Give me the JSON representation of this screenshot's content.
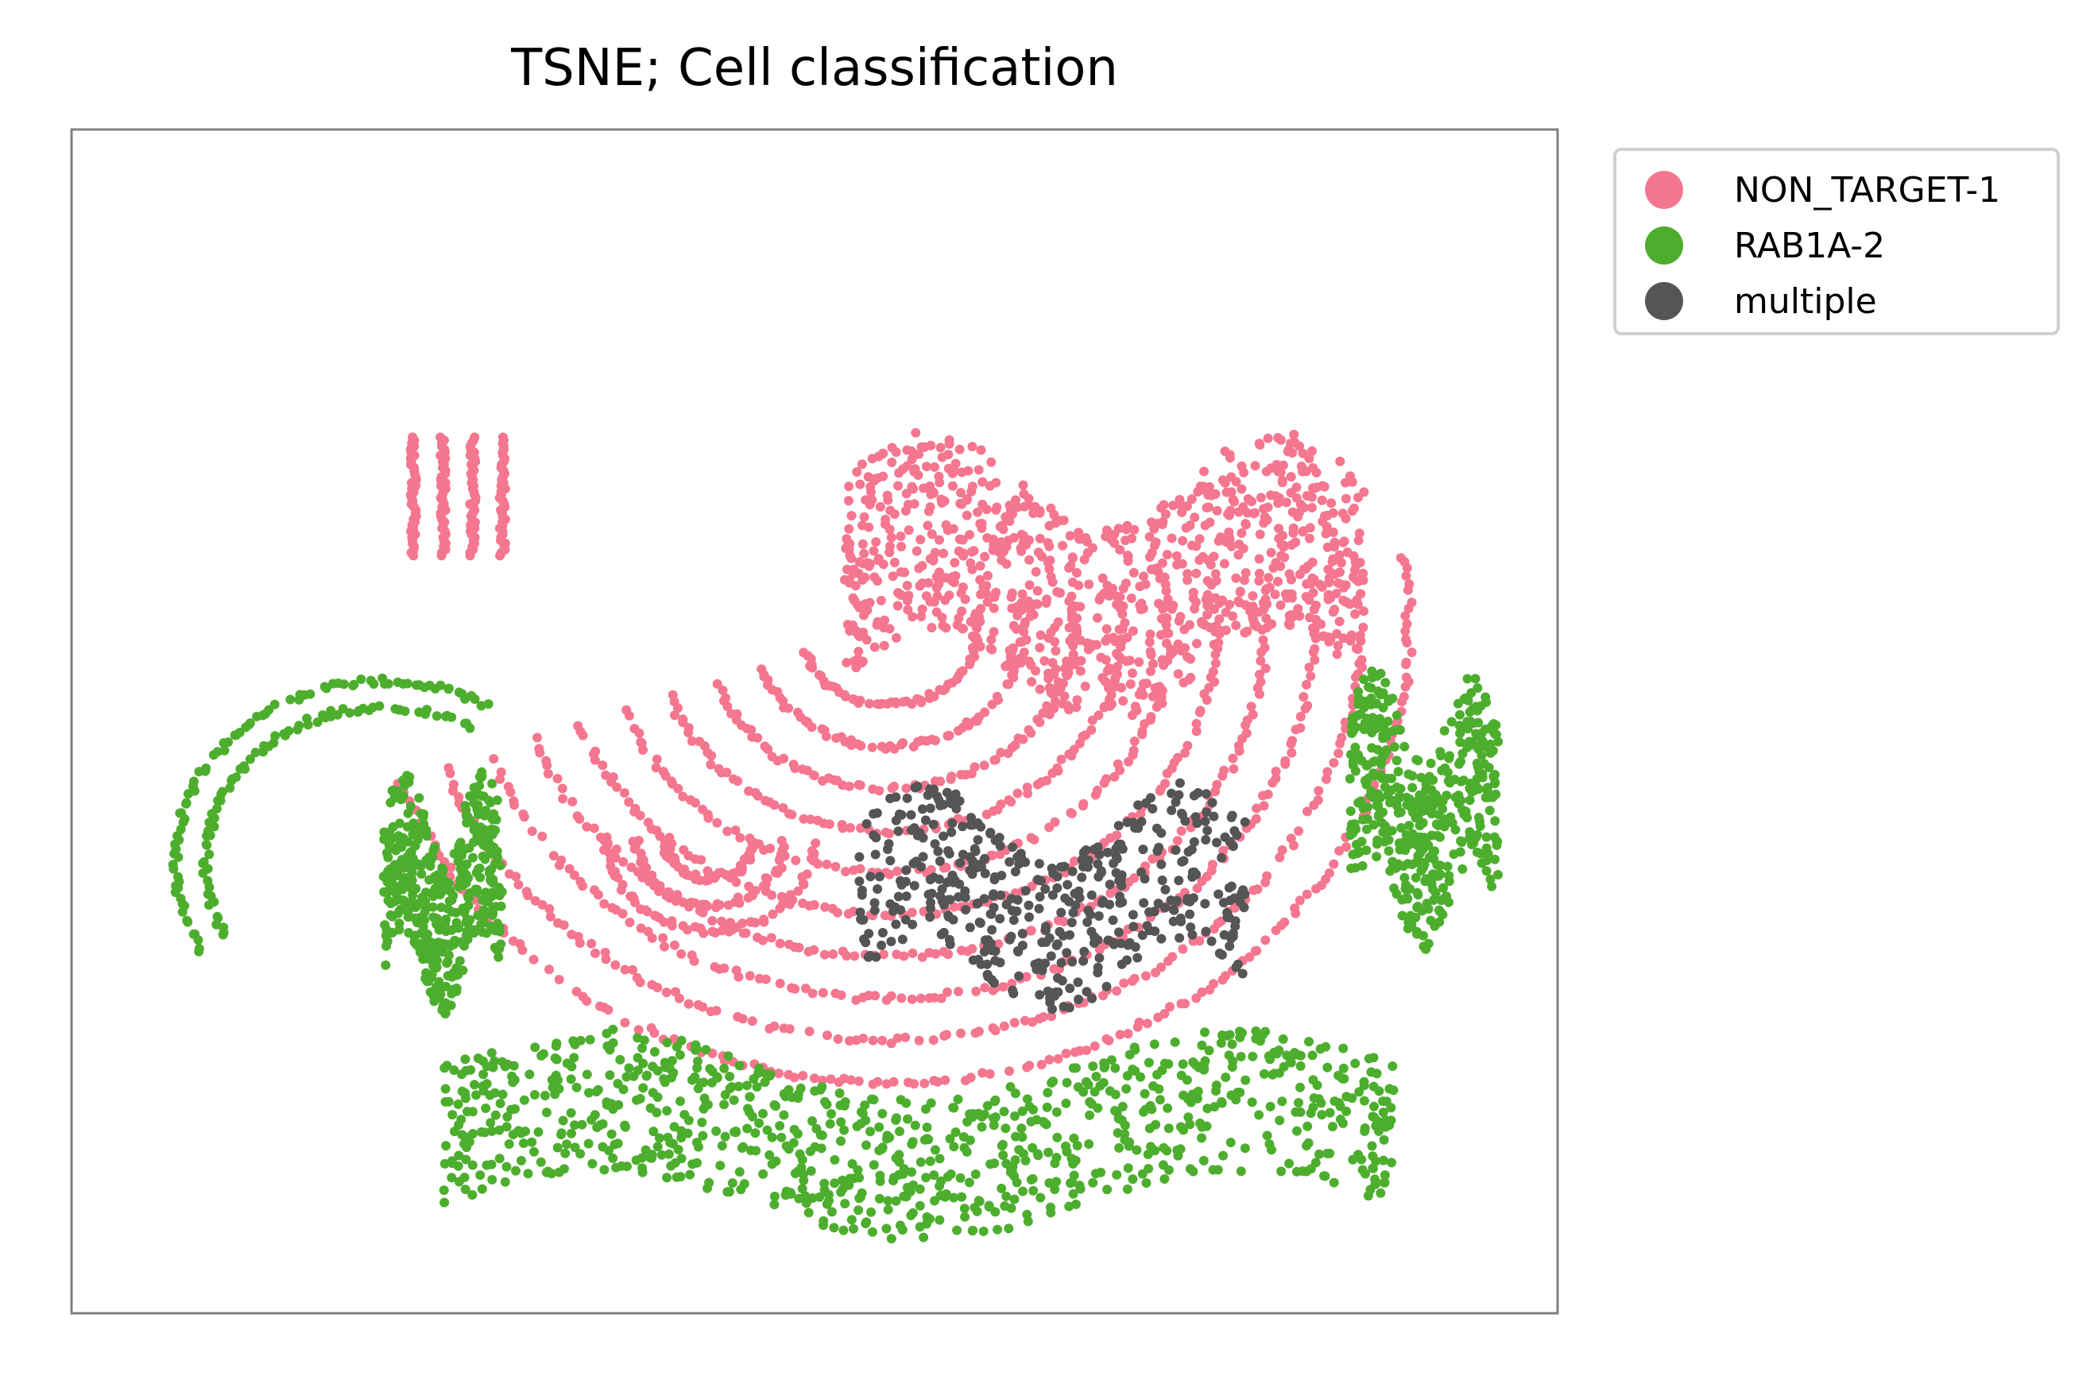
{
  "chart_data": {
    "type": "scatter",
    "title": "TSNE; Cell classification",
    "xlabel": "",
    "ylabel": "",
    "xlim": [
      0,
      100
    ],
    "ylim": [
      0,
      100
    ],
    "ticks": false,
    "grid": false,
    "legend_position": "outside-right-top",
    "series": [
      {
        "name": "NON_TARGET-1",
        "color": "#f4768f",
        "clusters": [
          {
            "shape": "arc",
            "cx": 55,
            "cy": 58,
            "r_min": 6,
            "r_max": 35,
            "start_deg": 200,
            "end_deg": 10,
            "rings": 10
          },
          {
            "shape": "bars",
            "x_from": 23,
            "x_to": 29,
            "y_from": 64,
            "y_to": 74
          },
          {
            "shape": "band",
            "x_from": 52,
            "x_to": 87,
            "y_from": 48,
            "y_to": 76
          },
          {
            "shape": "arc",
            "cx": 43,
            "cy": 40,
            "r_min": 3,
            "r_max": 7,
            "start_deg": 180,
            "end_deg": 360,
            "rings": 3
          }
        ]
      },
      {
        "name": "RAB1A-2",
        "color": "#4dae2e",
        "clusters": [
          {
            "shape": "arc",
            "cx": 21,
            "cy": 38,
            "r_min": 12,
            "r_max": 14,
            "start_deg": 60,
            "end_deg": 210,
            "rings": 2
          },
          {
            "shape": "blob",
            "x_from": 21,
            "x_to": 29,
            "y_from": 24,
            "y_to": 47
          },
          {
            "shape": "band",
            "x_from": 25,
            "x_to": 89,
            "y_from": 5,
            "y_to": 25
          },
          {
            "shape": "blob",
            "x_from": 86,
            "x_to": 96,
            "y_from": 29,
            "y_to": 56
          }
        ]
      },
      {
        "name": "multiple",
        "color": "#555555",
        "clusters": [
          {
            "shape": "blob",
            "x_from": 53,
            "x_to": 79,
            "y_from": 24,
            "y_to": 46
          }
        ]
      }
    ]
  }
}
